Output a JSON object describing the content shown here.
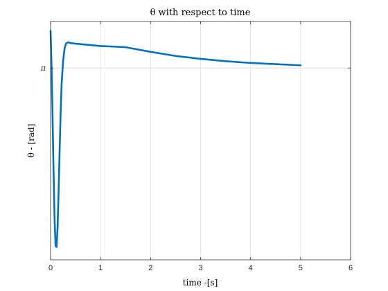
{
  "chart_data": {
    "type": "line",
    "title": "θ with respect to time",
    "xlabel": "time -[s]",
    "ylabel": "θ - [rad]",
    "xlim": [
      0,
      6
    ],
    "ylim": [
      1.5,
      3.54
    ],
    "grid": true,
    "xticks": [
      {
        "value": 0,
        "label": "0"
      },
      {
        "value": 1,
        "label": "1"
      },
      {
        "value": 2,
        "label": "2"
      },
      {
        "value": 3,
        "label": "3"
      },
      {
        "value": 4,
        "label": "4"
      },
      {
        "value": 5,
        "label": "5"
      },
      {
        "value": 6,
        "label": "6"
      }
    ],
    "yticks": [
      {
        "value": 3.14159,
        "label": "π"
      }
    ],
    "series": [
      {
        "color": "#0072BD",
        "x": [
          0,
          0.02,
          0.04,
          0.06,
          0.08,
          0.1,
          0.12,
          0.14,
          0.16,
          0.18,
          0.2,
          0.22,
          0.25,
          0.28,
          0.31,
          0.34,
          0.37,
          0.4,
          0.5,
          0.75,
          1.0,
          1.25,
          1.5,
          2.0,
          2.5,
          3.0,
          3.5,
          4.0,
          4.5,
          5.0
        ],
        "y": [
          3.46,
          3.15,
          2.72,
          2.25,
          1.85,
          1.62,
          1.61,
          1.78,
          2.08,
          2.42,
          2.74,
          3.0,
          3.2,
          3.31,
          3.35,
          3.36,
          3.36,
          3.355,
          3.35,
          3.34,
          3.33,
          3.325,
          3.32,
          3.28,
          3.245,
          3.22,
          3.2,
          3.185,
          3.175,
          3.165
        ]
      }
    ]
  }
}
